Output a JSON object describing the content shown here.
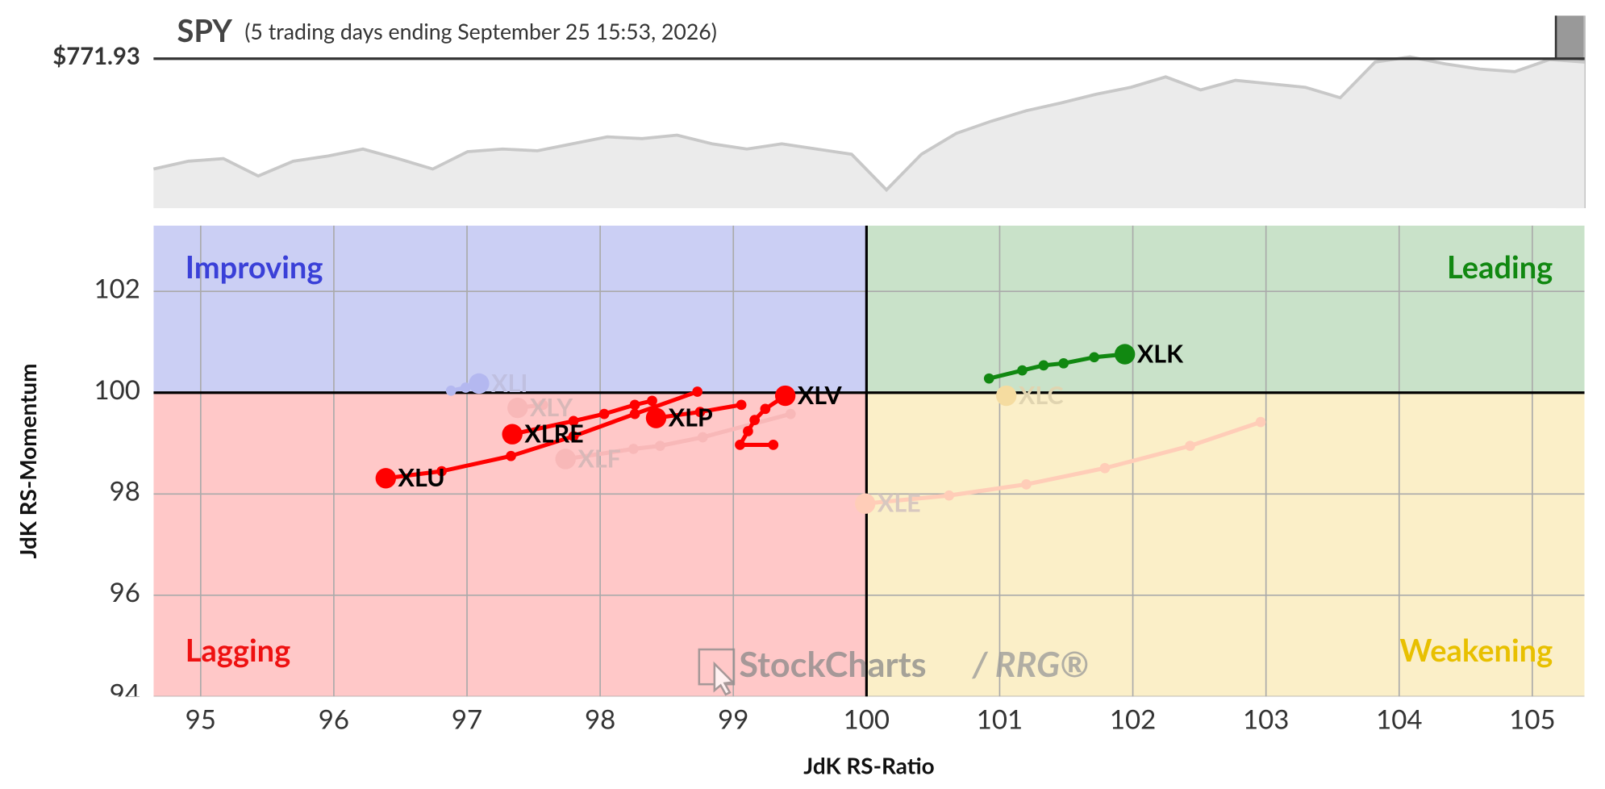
{
  "chart_data": [
    {
      "type": "area",
      "title": "SPY",
      "subtitle": "(5 trading days ending September 25 15:53, 2026)",
      "reference": {
        "value": 771.93,
        "label": "$771.93"
      },
      "values": [
        645,
        654,
        657,
        637,
        654,
        660,
        668,
        657,
        645,
        665,
        668,
        666,
        674,
        682,
        680,
        684,
        674,
        668,
        674,
        668,
        662,
        621,
        662,
        686,
        700,
        712,
        721,
        731,
        739,
        751,
        736,
        747,
        743,
        739,
        727,
        768,
        774,
        766,
        760,
        757,
        771,
        768
      ],
      "ylim": [
        600,
        821.4
      ],
      "color": "#c8c8c8"
    },
    {
      "type": "rrg",
      "xlabel": "JdK RS-Ratio",
      "ylabel": "JdK RS-Momentum",
      "xlim": [
        94.646,
        105.392
      ],
      "ylim": [
        94,
        103.3
      ],
      "xticks": [
        95,
        96,
        97,
        98,
        99,
        100,
        101,
        102,
        103,
        104,
        105
      ],
      "yticks": [
        94,
        96,
        98,
        100,
        102
      ],
      "grid": true,
      "center": {
        "x": 100,
        "y": 100
      },
      "quadrants": [
        {
          "name": "Improving",
          "corner": "top-left",
          "fill": "#cbcff4",
          "text_color": "#3a40d8"
        },
        {
          "name": "Leading",
          "corner": "top-right",
          "fill": "#c9e2c9",
          "text_color": "#118811"
        },
        {
          "name": "Lagging",
          "corner": "bottom-left",
          "fill": "#ffc8c8",
          "text_color": "#ee1111"
        },
        {
          "name": "Weakening",
          "corner": "bottom-right",
          "fill": "#fbefc8",
          "text_color": "#e8c000"
        }
      ],
      "watermark": [
        "StockCharts",
        "/ RRG®"
      ],
      "series": [
        {
          "name": "XLE",
          "color": "#ffcdb8",
          "label_color": "#d8c8c0",
          "x": [
            102.96,
            102.43,
            101.79,
            101.2,
            100.62,
            99.99
          ],
          "values": [
            99.42,
            98.95,
            98.51,
            98.19,
            97.97,
            97.81
          ]
        },
        {
          "name": "XLF",
          "color": "#f8b8b8",
          "label_color": "#d8b8b8",
          "x": [
            99.43,
            98.77,
            98.45,
            98.25,
            97.74
          ],
          "values": [
            99.58,
            99.12,
            98.95,
            98.89,
            98.69
          ]
        },
        {
          "name": "XLY",
          "color": "#f8b8b8",
          "label_color": "#d8b8b8",
          "x": [
            97.57,
            97.38
          ],
          "values": [
            99.76,
            99.7
          ]
        },
        {
          "name": "XLI",
          "color": "#b4b8f0",
          "label_color": "#c0c0e0",
          "x": [
            96.88,
            96.99,
            97.09
          ],
          "values": [
            100.04,
            100.1,
            100.18
          ]
        },
        {
          "name": "XLC",
          "color": "#f5dca0",
          "label_color": "#e0d4b0",
          "x": [
            101.05
          ],
          "values": [
            99.94
          ]
        },
        {
          "name": "XLU",
          "color": "#ff0000",
          "label_color": "#000000",
          "x": [
            98.73,
            98.26,
            97.8,
            97.33,
            96.81,
            96.39
          ],
          "values": [
            100.02,
            99.58,
            99.14,
            98.75,
            98.45,
            98.31
          ]
        },
        {
          "name": "XLRE",
          "color": "#ff0000",
          "label_color": "#000000",
          "x": [
            98.39,
            98.26,
            98.03,
            97.8,
            97.34
          ],
          "values": [
            99.84,
            99.76,
            99.58,
            99.44,
            99.18
          ]
        },
        {
          "name": "XLP",
          "color": "#ff0000",
          "label_color": "#000000",
          "x": [
            99.06,
            98.75,
            98.42
          ],
          "values": [
            99.76,
            99.62,
            99.5
          ]
        },
        {
          "name": "XLV",
          "color": "#ff0000",
          "label_color": "#000000",
          "x": [
            99.3,
            99.05,
            99.11,
            99.16,
            99.24,
            99.39
          ],
          "values": [
            98.97,
            98.97,
            99.24,
            99.46,
            99.68,
            99.94
          ]
        },
        {
          "name": "XLK",
          "color": "#118811",
          "label_color": "#000000",
          "x": [
            100.92,
            101.17,
            101.33,
            101.48,
            101.71,
            101.94
          ],
          "values": [
            100.28,
            100.44,
            100.54,
            100.58,
            100.7,
            100.76
          ]
        }
      ]
    }
  ]
}
